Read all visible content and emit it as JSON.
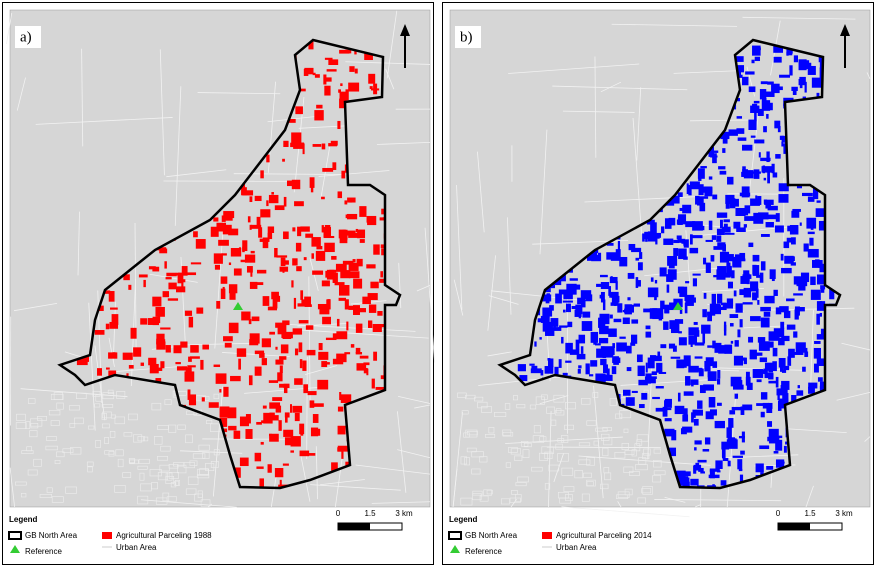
{
  "panels": [
    {
      "label": "a)",
      "color": "#ff0000",
      "legend": {
        "title": "Legend",
        "items": [
          "GB North Area",
          "Reference",
          "Agricultural Parceling 1988",
          "Urban Area"
        ]
      },
      "scale": [
        "0",
        "1.5",
        "3 km"
      ]
    },
    {
      "label": "b)",
      "color": "#0000ff",
      "legend": {
        "title": "Legend",
        "items": [
          "GB North Area",
          "Reference",
          "Agricultural Parceling 2014",
          "Urban Area"
        ]
      },
      "scale": [
        "0",
        "1.5",
        "3 km"
      ]
    }
  ]
}
